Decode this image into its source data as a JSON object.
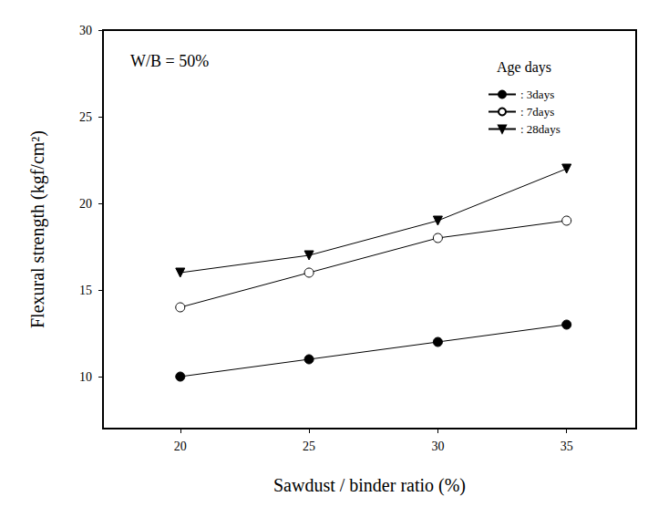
{
  "chart_data": {
    "type": "line",
    "annotation": "W/B = 50%",
    "legend_title": "Age days",
    "legend": "upper right",
    "x_label": "Sawdust / binder ratio (%)",
    "y_label": "Flexural strength (kgf/cm²)",
    "x": [
      20,
      25,
      30,
      35
    ],
    "xlim": [
      17,
      37.7
    ],
    "xticks": [
      20,
      25,
      30,
      35
    ],
    "ylim": [
      7,
      30
    ],
    "yticks": [
      10,
      15,
      20,
      25,
      30
    ],
    "grid": false,
    "series": [
      {
        "name": ": 3days",
        "color": "#000000",
        "marker": "filled_circle",
        "values": [
          10,
          11,
          12,
          13
        ]
      },
      {
        "name": ": 7days",
        "color": "#000000",
        "marker": "open_circle",
        "values": [
          14,
          16,
          18,
          19
        ]
      },
      {
        "name": ": 28days",
        "color": "#000000",
        "marker": "triangle_down",
        "values": [
          16,
          17,
          19,
          22
        ]
      }
    ]
  }
}
